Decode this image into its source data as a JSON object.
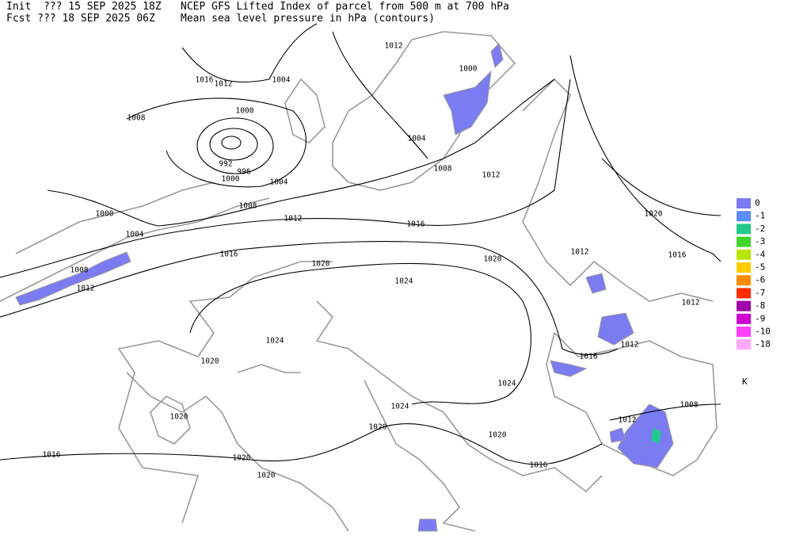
{
  "header": {
    "init": "Init  ??? 15 SEP 2025 18Z",
    "fcst": "Fcst ??? 18 SEP 2025 06Z",
    "title": "NCEP GFS Lifted Index of parcel from 500 m at 700 hPa",
    "subtitle": "Mean sea level pressure in hPa (contours)"
  },
  "contour_labels": [
    1012,
    1016,
    1012,
    1004,
    1000,
    1008,
    1000,
    992,
    996,
    1000,
    1004,
    1004,
    1008,
    1012,
    1008,
    1000,
    1004,
    1012,
    1016,
    1020,
    1016,
    1016,
    1020,
    1020,
    1012,
    1008,
    1012,
    1024,
    1012,
    1024,
    1012,
    1016,
    1020,
    1024,
    1008,
    1024,
    1020,
    1012,
    1020,
    1020,
    1016,
    1020,
    1016,
    1020
  ],
  "legend": {
    "unit": "K",
    "entries": [
      {
        "value": 0,
        "color": "#7b7bf2"
      },
      {
        "value": -1,
        "color": "#5a8cff"
      },
      {
        "value": -2,
        "color": "#22c98a"
      },
      {
        "value": -3,
        "color": "#3fd62a"
      },
      {
        "value": -4,
        "color": "#b8e600"
      },
      {
        "value": -5,
        "color": "#ffcc00"
      },
      {
        "value": -6,
        "color": "#ff8c00"
      },
      {
        "value": -7,
        "color": "#ff2a00"
      },
      {
        "value": -8,
        "color": "#a000a8"
      },
      {
        "value": -9,
        "color": "#d000d0"
      },
      {
        "value": -10,
        "color": "#ff40ff"
      },
      {
        "value": -18,
        "color": "#ffa8ff"
      }
    ]
  }
}
